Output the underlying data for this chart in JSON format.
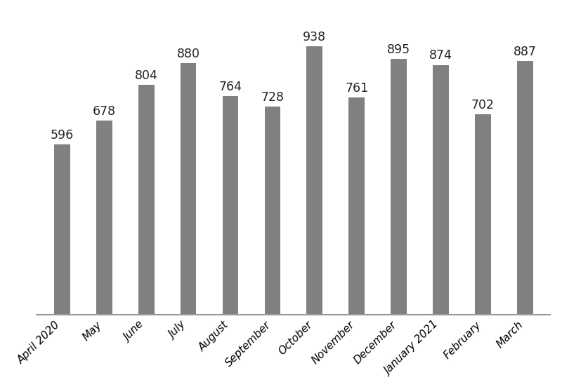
{
  "categories": [
    "April 2020",
    "May",
    "June",
    "July",
    "August",
    "September",
    "October",
    "November",
    "December",
    "January 2021",
    "February",
    "March"
  ],
  "values": [
    596,
    678,
    804,
    880,
    764,
    728,
    938,
    761,
    895,
    874,
    702,
    887
  ],
  "bar_color": "#808080",
  "label_color": "#222222",
  "label_fontsize": 12.5,
  "tick_fontsize": 11,
  "background_color": "#ffffff",
  "ylim": [
    0,
    1060
  ],
  "bar_width": 0.38
}
